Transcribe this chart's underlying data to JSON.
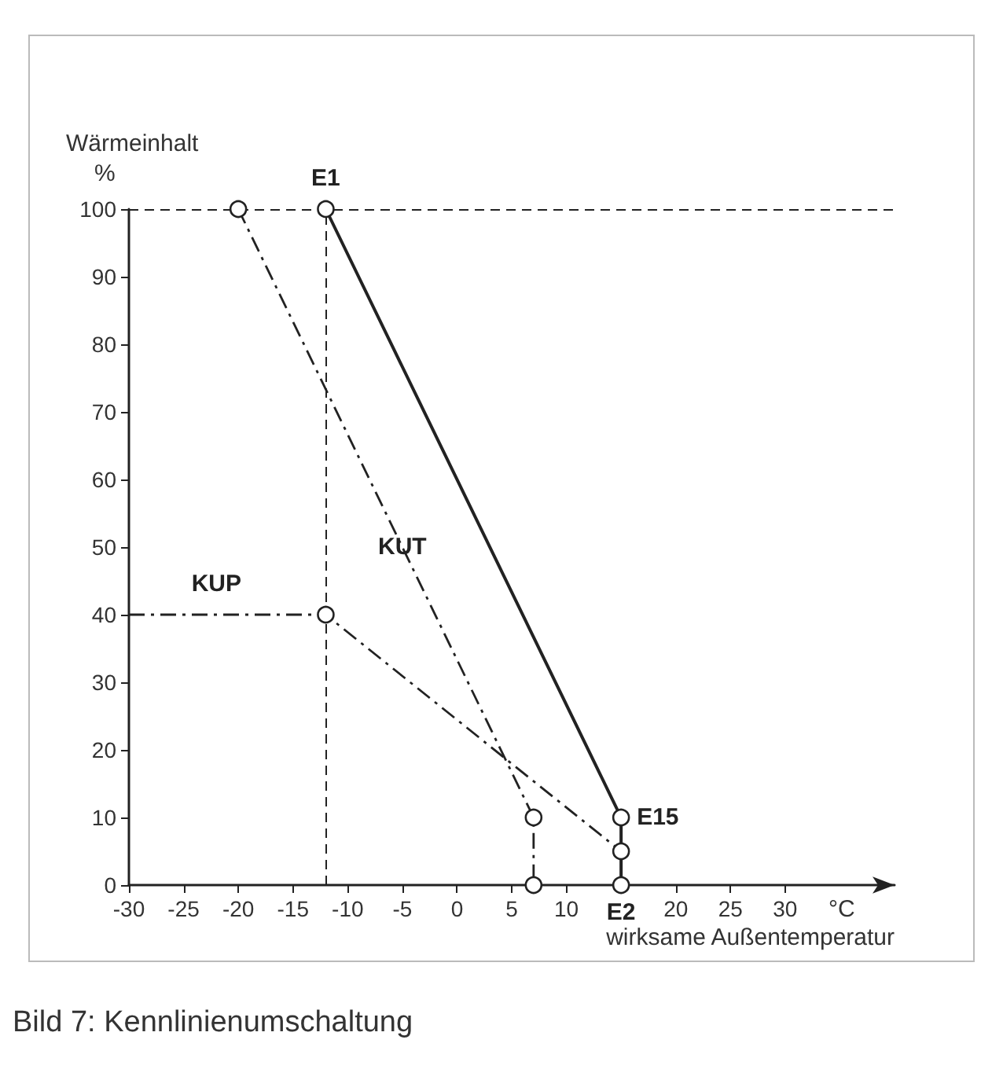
{
  "chart_data": {
    "type": "line",
    "title": "Bild 7: Kennlinienumschaltung",
    "xlabel": "wirksame Außentemperatur",
    "ylabel": "Wärmeinhalt",
    "xlim": [
      -30,
      40
    ],
    "xticks": [
      -30,
      -25,
      -20,
      -15,
      -10,
      -5,
      0,
      5,
      10,
      {
        "value": 15,
        "label": null
      },
      20,
      25,
      30
    ],
    "ylim": [
      0,
      100
    ],
    "yticks": [
      0,
      10,
      20,
      30,
      40,
      50,
      60,
      70,
      80,
      90,
      100
    ],
    "grid": false,
    "marker": "circle",
    "series": [
      {
        "color": "#222222",
        "x": [
          -12,
          15,
          15
        ],
        "values": [
          100,
          10,
          0
        ],
        "line_style": "solid"
      },
      {
        "color": "#222222",
        "x": [
          -30,
          -12,
          15
        ],
        "values": [
          40,
          40,
          5
        ],
        "line_style": "dashdot"
      },
      {
        "color": "#222222",
        "x": [
          -20,
          7,
          7
        ],
        "values": [
          100,
          10,
          0
        ],
        "line_style": "dashdot"
      }
    ],
    "ref_lines": [
      {
        "axis": "y",
        "value": 100,
        "line_style": "dashed"
      },
      {
        "axis": "x",
        "value": -12,
        "line_style": "dashed"
      }
    ],
    "annotations": [
      "%",
      "°C",
      {
        "text": "E1",
        "x": -12,
        "y": 100
      },
      {
        "text": "E15",
        "x": 15,
        "y": 10
      },
      {
        "text": "E2",
        "x": 15,
        "y": 0
      },
      {
        "text": "KUP",
        "x": -22,
        "y": 40
      },
      {
        "text": "KUT",
        "x": -5,
        "y": 50
      }
    ]
  }
}
